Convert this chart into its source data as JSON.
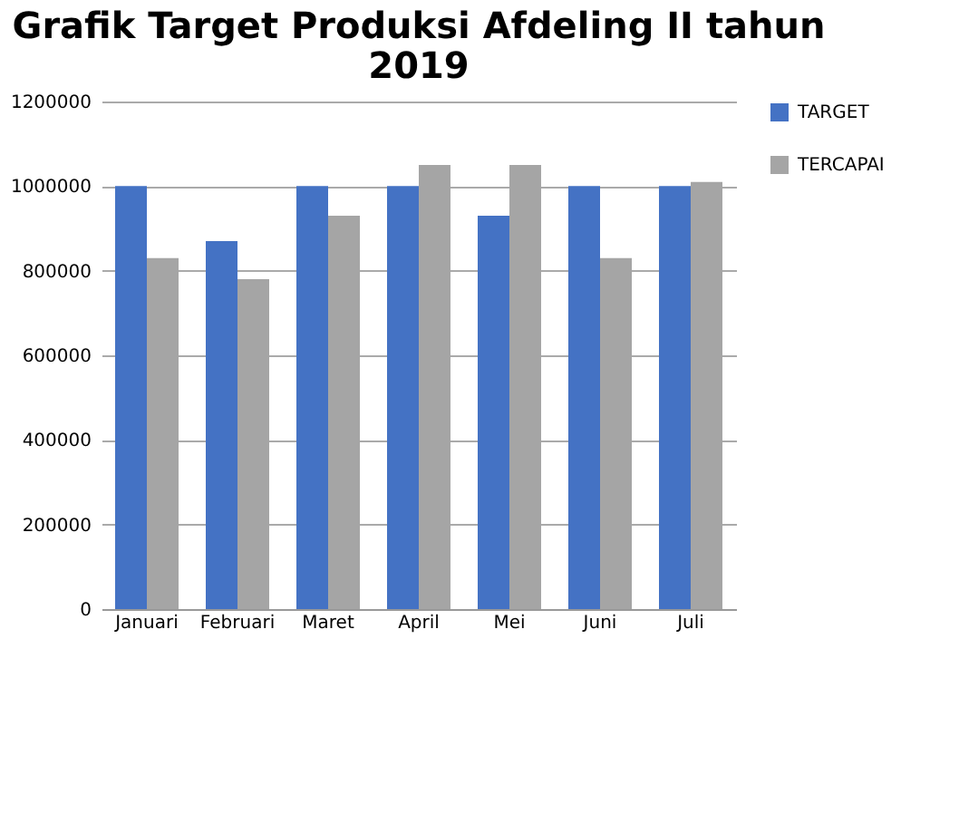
{
  "chart_data": {
    "type": "bar",
    "title": "Grafik Target Produksi Afdeling II tahun 2019",
    "categories": [
      "Januari",
      "Februari",
      "Maret",
      "April",
      "Mei",
      "Juni",
      "Juli"
    ],
    "series": [
      {
        "name": "TARGET",
        "color": "#4472c4",
        "values": [
          1000000,
          870000,
          1000000,
          1000000,
          930000,
          1000000,
          1000000
        ]
      },
      {
        "name": "TERCAPAI",
        "color": "#a5a5a5",
        "values": [
          830000,
          780000,
          930000,
          1050000,
          1050000,
          830000,
          1010000
        ]
      }
    ],
    "ylim": [
      0,
      1200000
    ],
    "yticks": [
      0,
      200000,
      400000,
      600000,
      800000,
      1000000,
      1200000
    ],
    "grid": "y",
    "legend": "right"
  }
}
